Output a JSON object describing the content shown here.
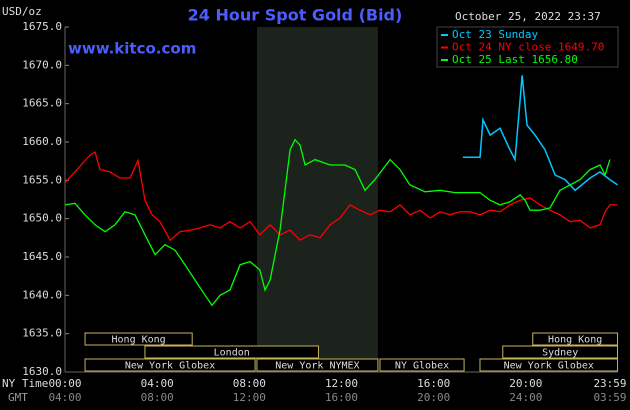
{
  "chart_data": {
    "type": "line",
    "title": "24 Hour Spot Gold (Bid)",
    "y_label": "USD/oz",
    "website": "www.kitco.com",
    "timestamp": "October 25, 2022 23:37",
    "x_row_label": "NY Time",
    "x2_row_label": "GMT",
    "xlim": [
      0,
      24
    ],
    "ylim": [
      1630,
      1675
    ],
    "yticks": [
      {
        "value": 1630,
        "label": "1630.0"
      },
      {
        "value": 1635,
        "label": "1635.0"
      },
      {
        "value": 1640,
        "label": "1640.0"
      },
      {
        "value": 1645,
        "label": "1645.0"
      },
      {
        "value": 1650,
        "label": "1650.0"
      },
      {
        "value": 1655,
        "label": "1655.0"
      },
      {
        "value": 1660,
        "label": "1660.0"
      },
      {
        "value": 1665,
        "label": "1665.0"
      },
      {
        "value": 1670,
        "label": "1670.0"
      },
      {
        "value": 1675,
        "label": "1675.0"
      }
    ],
    "xticks": [
      {
        "value": 0,
        "label": "00:00"
      },
      {
        "value": 4,
        "label": "04:00"
      },
      {
        "value": 8,
        "label": "08:00"
      },
      {
        "value": 12,
        "label": "12:00"
      },
      {
        "value": 16,
        "label": "16:00"
      },
      {
        "value": 20,
        "label": "20:00"
      },
      {
        "value": 23.98,
        "label": "23:59"
      }
    ],
    "x2ticks": [
      {
        "value": 0,
        "label": "04:00"
      },
      {
        "value": 4,
        "label": "08:00"
      },
      {
        "value": 8,
        "label": "12:00"
      },
      {
        "value": 12,
        "label": "16:00"
      },
      {
        "value": 16,
        "label": "20:00"
      },
      {
        "value": 20,
        "label": "24:00"
      },
      {
        "value": 23.98,
        "label": "03:59"
      }
    ],
    "shaded_range": [
      8.33,
      13.58
    ],
    "sessions": [
      {
        "label": "Hong Kong",
        "start": 0.87,
        "end": 5.52,
        "row": 0
      },
      {
        "label": "Hong Kong",
        "start": 20.3,
        "end": 23.98,
        "row": 0
      },
      {
        "label": "London",
        "start": 3.47,
        "end": 11.0,
        "row": 1
      },
      {
        "label": "Sydney",
        "start": 19.0,
        "end": 23.98,
        "row": 1
      },
      {
        "label": "New York Globex",
        "start": 0.87,
        "end": 8.25,
        "row": 2
      },
      {
        "label": "New York NYMEX",
        "start": 8.33,
        "end": 13.58,
        "row": 2
      },
      {
        "label": "NY Globex",
        "start": 13.67,
        "end": 17.32,
        "row": 2
      },
      {
        "label": "New York Globex",
        "start": 18.01,
        "end": 23.98,
        "row": 2
      }
    ],
    "series": [
      {
        "name": "Oct 23 Sunday",
        "color": "#00c8ff",
        "x": [
          17.27,
          18.01,
          18.14,
          18.45,
          18.88,
          19.31,
          19.53,
          19.75,
          19.84,
          20.05,
          20.4,
          20.83,
          21.27,
          21.7,
          22.14,
          22.79,
          23.22,
          23.65,
          23.98
        ],
        "values": [
          1658.0,
          1658.0,
          1662.9,
          1660.9,
          1661.8,
          1659.0,
          1657.7,
          1665.5,
          1668.7,
          1662.2,
          1660.9,
          1659.0,
          1655.7,
          1655.1,
          1653.7,
          1655.3,
          1656.1,
          1655.1,
          1654.4
        ]
      },
      {
        "name": "Oct 24 NY close 1649.70",
        "color": "#ff0000",
        "x": [
          0,
          0.43,
          1.09,
          1.3,
          1.52,
          1.95,
          2.39,
          2.82,
          3.17,
          3.47,
          3.78,
          4.12,
          4.56,
          4.99,
          5.43,
          5.86,
          6.29,
          6.73,
          7.16,
          7.6,
          8.03,
          8.46,
          8.9,
          9.33,
          9.77,
          10.2,
          10.63,
          11.07,
          11.5,
          11.94,
          12.37,
          12.8,
          13.24,
          13.67,
          14.11,
          14.54,
          14.97,
          15.41,
          15.84,
          16.28,
          16.71,
          17.14,
          17.58,
          18.01,
          18.45,
          18.88,
          19.31,
          19.75,
          20.18,
          20.62,
          21.05,
          21.48,
          21.92,
          22.35,
          22.79,
          23.22,
          23.44,
          23.65,
          23.98
        ],
        "values": [
          1654.7,
          1656.1,
          1658.3,
          1658.7,
          1656.4,
          1656.1,
          1655.3,
          1655.3,
          1657.6,
          1652.4,
          1650.5,
          1649.6,
          1647.2,
          1648.3,
          1648.5,
          1648.8,
          1649.2,
          1648.8,
          1649.6,
          1648.8,
          1649.6,
          1647.9,
          1649.2,
          1647.9,
          1648.5,
          1647.2,
          1647.9,
          1647.5,
          1649.2,
          1650.1,
          1651.8,
          1651.1,
          1650.5,
          1651.1,
          1650.9,
          1651.8,
          1650.5,
          1651.1,
          1650.1,
          1650.9,
          1650.5,
          1650.9,
          1650.9,
          1650.5,
          1651.1,
          1650.9,
          1651.8,
          1652.4,
          1652.7,
          1651.8,
          1651.1,
          1650.5,
          1649.6,
          1649.8,
          1648.8,
          1649.2,
          1650.9,
          1651.8,
          1651.8
        ]
      },
      {
        "name": "Oct 25 Last 1656.80",
        "color": "#00ff00",
        "x": [
          0,
          0.43,
          0.87,
          1.3,
          1.74,
          2.17,
          2.6,
          3.04,
          3.47,
          3.91,
          4.34,
          4.77,
          5.21,
          5.64,
          6.08,
          6.38,
          6.73,
          7.16,
          7.6,
          8.03,
          8.46,
          8.68,
          8.9,
          9.33,
          9.77,
          9.98,
          10.2,
          10.42,
          10.85,
          11.5,
          12.15,
          12.59,
          13.02,
          13.45,
          14.11,
          14.54,
          14.97,
          15.63,
          16.28,
          16.93,
          17.58,
          18.01,
          18.45,
          18.88,
          19.31,
          19.75,
          19.97,
          20.18,
          20.62,
          21.05,
          21.48,
          21.92,
          22.35,
          22.79,
          23.22,
          23.44,
          23.65
        ],
        "values": [
          1651.8,
          1652.0,
          1650.5,
          1649.2,
          1648.3,
          1649.2,
          1650.9,
          1650.5,
          1647.9,
          1645.3,
          1646.6,
          1645.9,
          1644.0,
          1642.0,
          1640.0,
          1638.7,
          1640.0,
          1640.7,
          1644.0,
          1644.4,
          1643.3,
          1640.7,
          1642.0,
          1648.5,
          1659.0,
          1660.3,
          1659.6,
          1657.0,
          1657.7,
          1657.0,
          1657.0,
          1656.4,
          1653.7,
          1655.1,
          1657.7,
          1656.4,
          1654.4,
          1653.5,
          1653.7,
          1653.4,
          1653.4,
          1653.4,
          1652.4,
          1651.8,
          1652.2,
          1653.1,
          1652.4,
          1651.1,
          1651.1,
          1651.4,
          1653.7,
          1654.4,
          1655.1,
          1656.4,
          1657.0,
          1655.7,
          1657.7
        ]
      }
    ]
  }
}
